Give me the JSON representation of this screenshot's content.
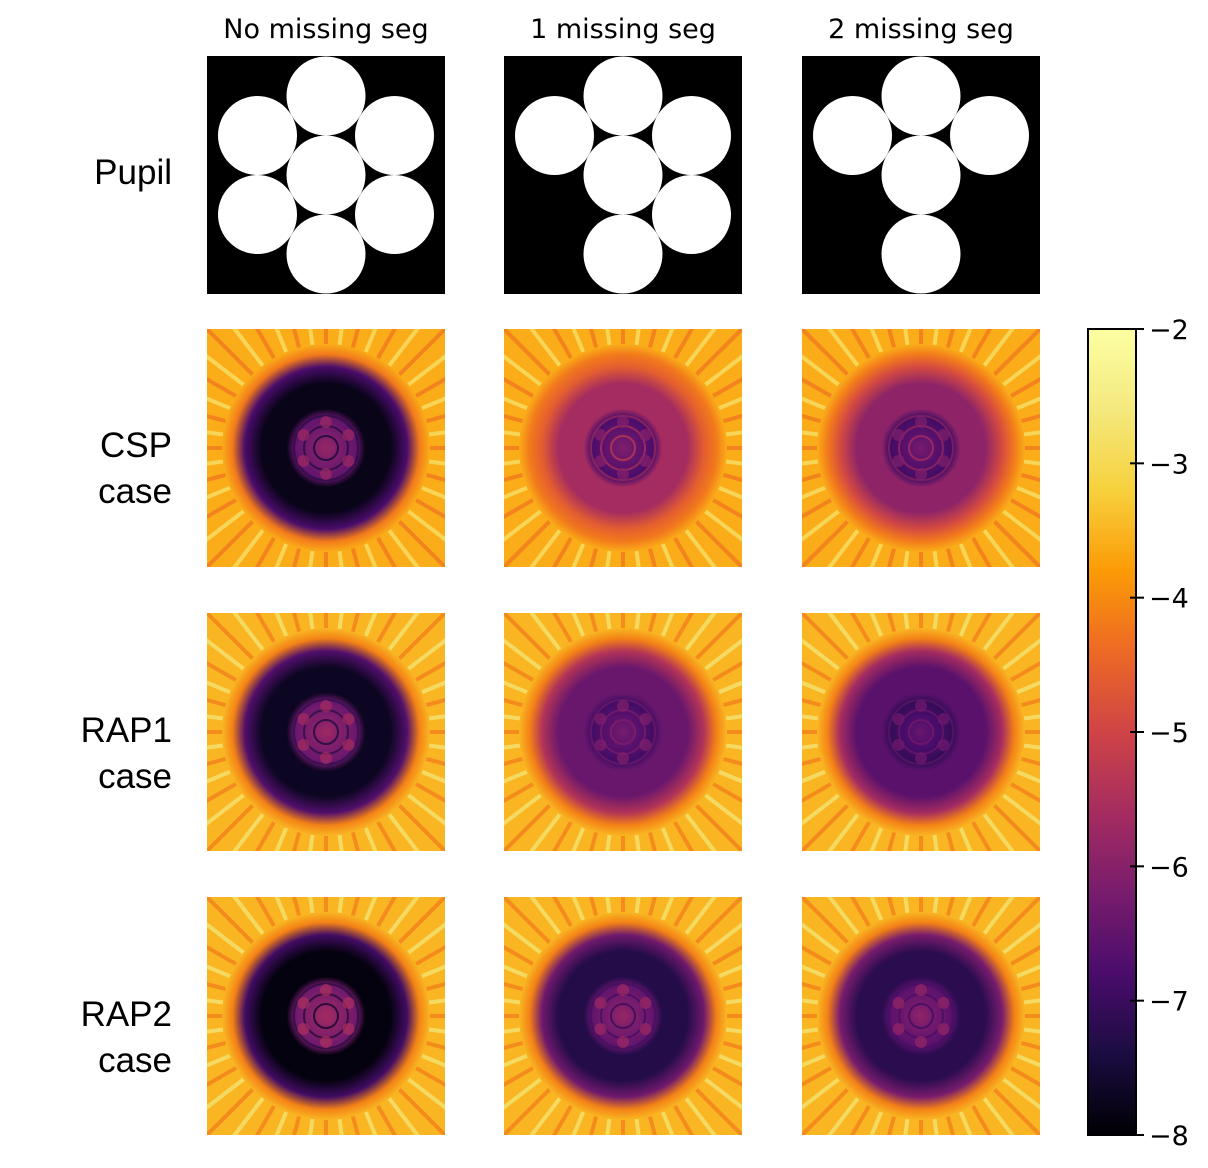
{
  "column_titles": [
    "No missing seg",
    "1 missing seg",
    "2 missing seg"
  ],
  "row_labels": [
    {
      "line1": "Pupil",
      "line2": ""
    },
    {
      "line1": "CSP",
      "line2": "case"
    },
    {
      "line1": "RAP1",
      "line2": "case"
    },
    {
      "line1": "RAP2",
      "line2": "case"
    }
  ],
  "chart_data": {
    "type": "heatmap",
    "title": "",
    "colormap": "inferno",
    "colorbar": {
      "min": -8,
      "max": -2,
      "ticks": [
        -2,
        -3,
        -4,
        -5,
        -6,
        -7,
        -8
      ],
      "tick_labels": [
        "−2",
        "−3",
        "−4",
        "−5",
        "−6",
        "−7",
        "−8"
      ]
    },
    "pupils": [
      {
        "column": "No missing seg",
        "segments_present": [
          true,
          true,
          true,
          true,
          true,
          true,
          true
        ]
      },
      {
        "column": "1 missing seg",
        "segments_present": [
          true,
          true,
          true,
          true,
          false,
          true,
          true
        ]
      },
      {
        "column": "2 missing seg",
        "segments_present": [
          true,
          true,
          true,
          true,
          false,
          false,
          true
        ]
      }
    ],
    "panels": [
      {
        "row": "CSP case",
        "column": "No missing seg",
        "dark_zone_level": -7.8,
        "core_level": -6.2,
        "background_level": -3.6
      },
      {
        "row": "CSP case",
        "column": "1 missing seg",
        "dark_zone_level": -5.6,
        "core_level": -6.5,
        "background_level": -3.6
      },
      {
        "row": "CSP case",
        "column": "2 missing seg",
        "dark_zone_level": -5.9,
        "core_level": -6.6,
        "background_level": -3.6
      },
      {
        "row": "RAP1 case",
        "column": "No missing seg",
        "dark_zone_level": -7.7,
        "core_level": -6.1,
        "background_level": -3.5
      },
      {
        "row": "RAP1 case",
        "column": "1 missing seg",
        "dark_zone_level": -6.4,
        "core_level": -6.6,
        "background_level": -3.5
      },
      {
        "row": "RAP1 case",
        "column": "2 missing seg",
        "dark_zone_level": -6.6,
        "core_level": -6.8,
        "background_level": -3.5
      },
      {
        "row": "RAP2 case",
        "column": "No missing seg",
        "dark_zone_level": -7.9,
        "core_level": -6.0,
        "background_level": -3.5
      },
      {
        "row": "RAP2 case",
        "column": "1 missing seg",
        "dark_zone_level": -7.3,
        "core_level": -6.2,
        "background_level": -3.5
      },
      {
        "row": "RAP2 case",
        "column": "2 missing seg",
        "dark_zone_level": -7.2,
        "core_level": -6.3,
        "background_level": -3.5
      }
    ]
  }
}
